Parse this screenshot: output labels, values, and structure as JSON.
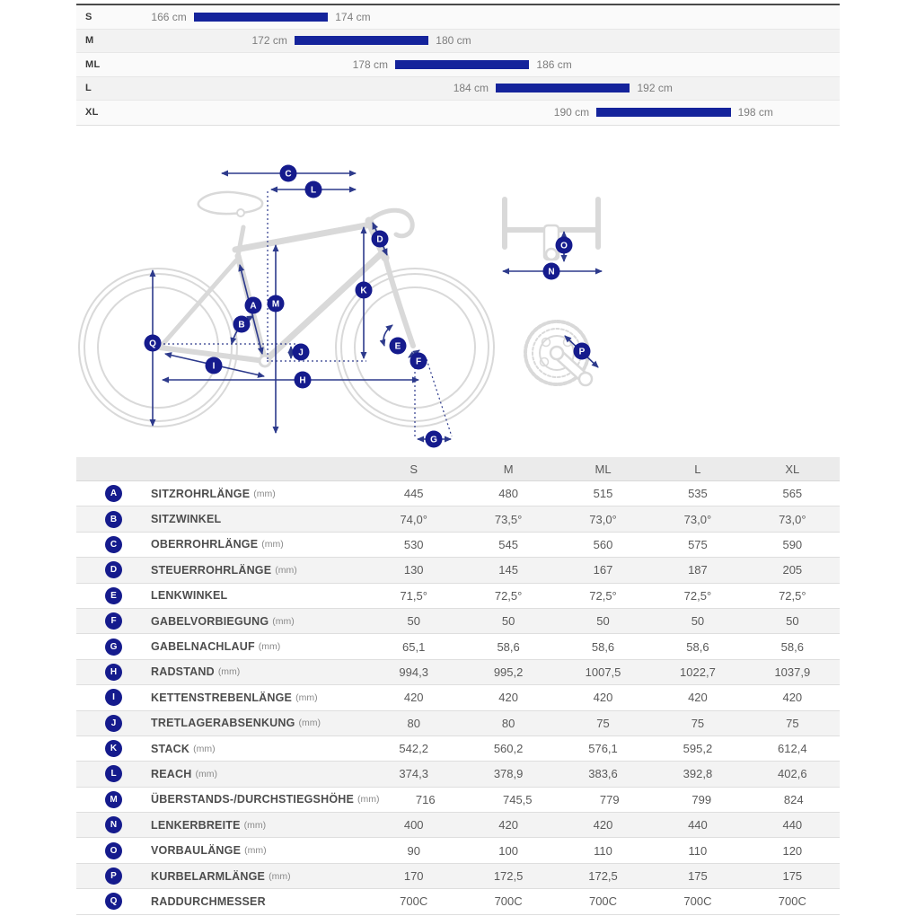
{
  "colors": {
    "bar_blue": "#14239B",
    "badge_blue": "#151b8d",
    "arrow_blue": "#2d3a8c",
    "bike_outline": "#d9d9d9",
    "table_header_bg": "#ebebeb",
    "alt_row_bg": "#f3f3f3"
  },
  "diagram": {
    "badges": [
      "A",
      "B",
      "C",
      "D",
      "E",
      "F",
      "G",
      "H",
      "I",
      "J",
      "K",
      "L",
      "M",
      "N",
      "O",
      "P",
      "Q"
    ]
  },
  "chart_data": [
    {
      "type": "bar",
      "subtype": "horizontal_range",
      "title": "",
      "xlabel": "",
      "ylabel": "",
      "unit": "cm",
      "categories": [
        "S",
        "M",
        "ML",
        "L",
        "XL"
      ],
      "ranges": [
        [
          166,
          174
        ],
        [
          172,
          180
        ],
        [
          178,
          186
        ],
        [
          184,
          192
        ],
        [
          190,
          198
        ]
      ],
      "range_labels": [
        [
          "166 cm",
          "174 cm"
        ],
        [
          "172 cm",
          "180 cm"
        ],
        [
          "178 cm",
          "186 cm"
        ],
        [
          "184 cm",
          "192 cm"
        ],
        [
          "190 cm",
          "198 cm"
        ]
      ],
      "xlim": [
        159,
        204.5
      ],
      "grid": false,
      "legend": "none",
      "bar_color": "#14239B"
    },
    {
      "type": "table",
      "columns": [
        "S",
        "M",
        "ML",
        "L",
        "XL"
      ],
      "rows": [
        {
          "key": "A",
          "label": "SITZROHRLÄNGE",
          "unit": "(mm)",
          "values": [
            "445",
            "480",
            "515",
            "535",
            "565"
          ]
        },
        {
          "key": "B",
          "label": "SITZWINKEL",
          "unit": "",
          "values": [
            "74,0°",
            "73,5°",
            "73,0°",
            "73,0°",
            "73,0°"
          ]
        },
        {
          "key": "C",
          "label": "OBERROHRLÄNGE",
          "unit": "(mm)",
          "values": [
            "530",
            "545",
            "560",
            "575",
            "590"
          ]
        },
        {
          "key": "D",
          "label": "STEUERROHRLÄNGE",
          "unit": "(mm)",
          "values": [
            "130",
            "145",
            "167",
            "187",
            "205"
          ]
        },
        {
          "key": "E",
          "label": "LENKWINKEL",
          "unit": "",
          "values": [
            "71,5°",
            "72,5°",
            "72,5°",
            "72,5°",
            "72,5°"
          ]
        },
        {
          "key": "F",
          "label": "GABELVORBIEGUNG",
          "unit": "(mm)",
          "values": [
            "50",
            "50",
            "50",
            "50",
            "50"
          ]
        },
        {
          "key": "G",
          "label": "GABELNACHLAUF",
          "unit": "(mm)",
          "values": [
            "65,1",
            "58,6",
            "58,6",
            "58,6",
            "58,6"
          ]
        },
        {
          "key": "H",
          "label": "RADSTAND",
          "unit": "(mm)",
          "values": [
            "994,3",
            "995,2",
            "1007,5",
            "1022,7",
            "1037,9"
          ]
        },
        {
          "key": "I",
          "label": "KETTENSTREBENLÄNGE",
          "unit": "(mm)",
          "values": [
            "420",
            "420",
            "420",
            "420",
            "420"
          ]
        },
        {
          "key": "J",
          "label": "TRETLAGERABSENKUNG",
          "unit": "(mm)",
          "values": [
            "80",
            "80",
            "75",
            "75",
            "75"
          ]
        },
        {
          "key": "K",
          "label": "STACK",
          "unit": "(mm)",
          "values": [
            "542,2",
            "560,2",
            "576,1",
            "595,2",
            "612,4"
          ]
        },
        {
          "key": "L",
          "label": "REACH",
          "unit": "(mm)",
          "values": [
            "374,3",
            "378,9",
            "383,6",
            "392,8",
            "402,6"
          ]
        },
        {
          "key": "M",
          "label": "ÜBERSTANDS-/DURCHSTIEGSHÖHE",
          "unit": "(mm)",
          "values": [
            "716",
            "745,5",
            "779",
            "799",
            "824"
          ]
        },
        {
          "key": "N",
          "label": "LENKERBREITE",
          "unit": "(mm)",
          "values": [
            "400",
            "420",
            "420",
            "440",
            "440"
          ]
        },
        {
          "key": "O",
          "label": "VORBAULÄNGE",
          "unit": "(mm)",
          "values": [
            "90",
            "100",
            "110",
            "110",
            "120"
          ]
        },
        {
          "key": "P",
          "label": "KURBELARMLÄNGE",
          "unit": "(mm)",
          "values": [
            "170",
            "172,5",
            "172,5",
            "175",
            "175"
          ]
        },
        {
          "key": "Q",
          "label": "RADDURCHMESSER",
          "unit": "",
          "values": [
            "700C",
            "700C",
            "700C",
            "700C",
            "700C"
          ]
        }
      ]
    }
  ]
}
